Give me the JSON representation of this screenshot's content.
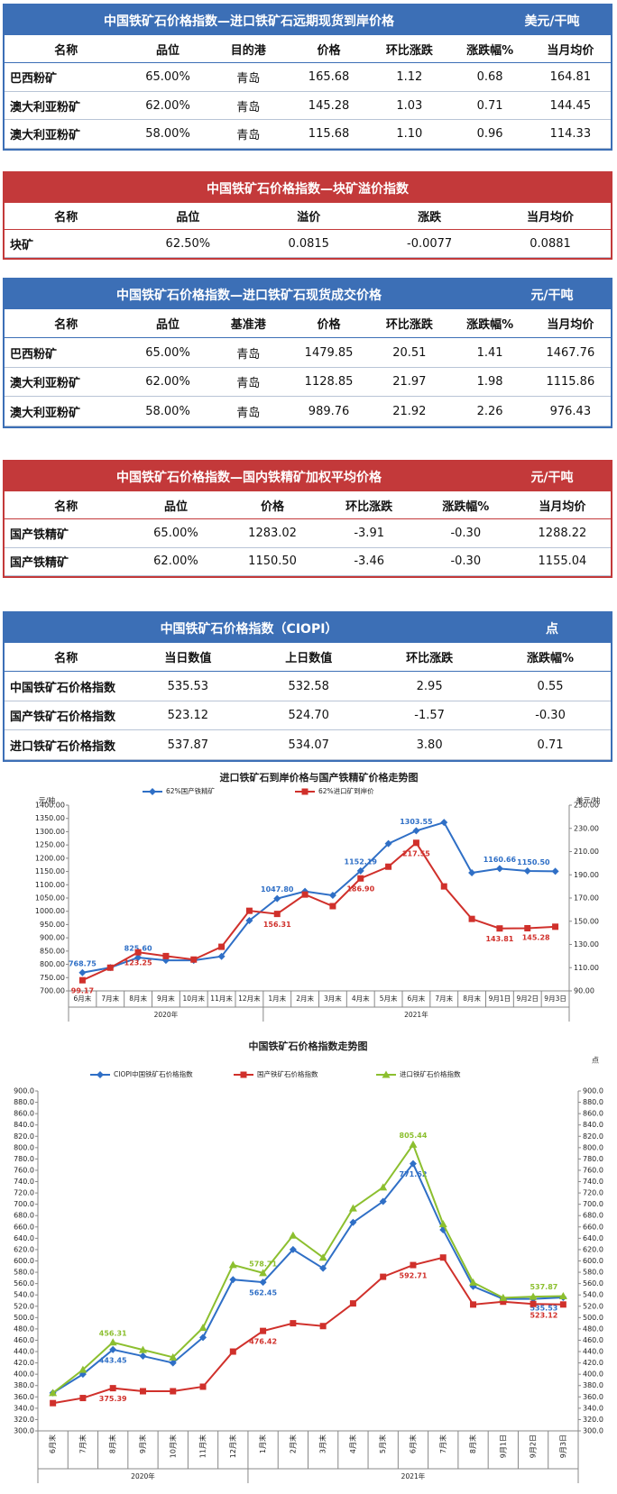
{
  "tables": [
    {
      "title": "中国铁矿石价格指数—进口铁矿石远期现货到岸价格",
      "unit": "美元/干吨",
      "color": "#3c6fb6",
      "header": [
        "名称",
        "品位",
        "目的港",
        "价格",
        "环比涨跌",
        "涨跌幅%",
        "当月均价"
      ],
      "rows": [
        [
          "巴西粉矿",
          "65.00%",
          "青岛",
          "165.68",
          "1.12",
          "0.68",
          "164.81"
        ],
        [
          "澳大利亚粉矿",
          "62.00%",
          "青岛",
          "145.28",
          "1.03",
          "0.71",
          "144.45"
        ],
        [
          "澳大利亚粉矿",
          "58.00%",
          "青岛",
          "115.68",
          "1.10",
          "0.96",
          "114.33"
        ]
      ]
    },
    {
      "title": "中国铁矿石价格指数—块矿溢价指数",
      "color": "#c3393a",
      "header": [
        "名称",
        "品位",
        "溢价",
        "涨跌",
        "当月均价"
      ],
      "rows": [
        [
          "块矿",
          "62.50%",
          "0.0815",
          "-0.0077",
          "0.0881"
        ]
      ]
    },
    {
      "title": "中国铁矿石价格指数—进口铁矿石现货成交价格",
      "unit": "元/干吨",
      "color": "#3c6fb6",
      "header": [
        "名称",
        "品位",
        "基准港",
        "价格",
        "环比涨跌",
        "涨跌幅%",
        "当月均价"
      ],
      "rows": [
        [
          "巴西粉矿",
          "65.00%",
          "青岛",
          "1479.85",
          "20.51",
          "1.41",
          "1467.76"
        ],
        [
          "澳大利亚粉矿",
          "62.00%",
          "青岛",
          "1128.85",
          "21.97",
          "1.98",
          "1115.86"
        ],
        [
          "澳大利亚粉矿",
          "58.00%",
          "青岛",
          "989.76",
          "21.92",
          "2.26",
          "976.43"
        ]
      ]
    },
    {
      "title": "中国铁矿石价格指数—国内铁精矿加权平均价格",
      "unit": "元/干吨",
      "color": "#c3393a",
      "header": [
        "名称",
        "品位",
        "价格",
        "环比涨跌",
        "涨跌幅%",
        "当月均价"
      ],
      "rows": [
        [
          "国产铁精矿",
          "65.00%",
          "1283.02",
          "-3.91",
          "-0.30",
          "1288.22"
        ],
        [
          "国产铁精矿",
          "62.00%",
          "1150.50",
          "-3.46",
          "-0.30",
          "1155.04"
        ]
      ]
    },
    {
      "title": "中国铁矿石价格指数（CIOPI）",
      "unit": "点",
      "color": "#3c6fb6",
      "header": [
        "名称",
        "当日数值",
        "上日数值",
        "环比涨跌",
        "涨跌幅%"
      ],
      "rows": [
        [
          "中国铁矿石价格指数",
          "535.53",
          "532.58",
          "2.95",
          "0.55"
        ],
        [
          "国产铁矿石价格指数",
          "523.12",
          "524.70",
          "-1.57",
          "-0.30"
        ],
        [
          "进口铁矿石价格指数",
          "537.87",
          "534.07",
          "3.80",
          "0.71"
        ]
      ]
    }
  ],
  "chart_data": [
    {
      "type": "line",
      "title": "进口铁矿石到岸价格与国产铁精矿价格走势图",
      "y_label": "元/吨",
      "y2_label": "美元/吨",
      "categories": [
        "6月末",
        "7月末",
        "8月末",
        "9月末",
        "10月末",
        "11月末",
        "12月末",
        "1月末",
        "2月末",
        "3月末",
        "4月末",
        "5月末",
        "6月末",
        "7月末",
        "8月末",
        "9月1日",
        "9月2日",
        "9月3日"
      ],
      "category_groups": [
        {
          "name": "2020年",
          "count": 7
        },
        {
          "name": "2021年",
          "count": 11
        }
      ],
      "series": [
        {
          "name": "62%国产铁精矿",
          "color": "#2f6fc6",
          "marker": "diamond",
          "values": [
            768.75,
            788,
            825.6,
            815,
            815,
            830,
            965,
            1047.8,
            1075,
            1060,
            1152.19,
            1255,
            1303.55,
            1335,
            1145,
            1160.66,
            1152,
            1150.5
          ],
          "value_labels": [
            "768.75",
            null,
            "825.60",
            null,
            null,
            null,
            null,
            "1047.80",
            null,
            null,
            "1152.19",
            null,
            "1303.55",
            null,
            null,
            "1160.66",
            null,
            "1150.50"
          ]
        },
        {
          "name": "62%进口矿到岸价",
          "color": "#d0302b",
          "marker": "square",
          "axis": "y2",
          "values": [
            99.17,
            110,
            123.25,
            120,
            117,
            128,
            159,
            156.31,
            173,
            163,
            186.9,
            197,
            217.55,
            180,
            152,
            143.81,
            144,
            145.28
          ],
          "value_labels": [
            "99.17",
            null,
            "123.25",
            null,
            null,
            null,
            null,
            "156.31",
            null,
            null,
            "186.90",
            null,
            "217.55",
            null,
            null,
            "143.81",
            null,
            "145.28"
          ]
        }
      ],
      "ylim": [
        700,
        1400
      ],
      "yticks": [
        {
          "value": 700,
          "label": "700.00"
        },
        {
          "value": 750,
          "label": "750.00"
        },
        {
          "value": 800,
          "label": "800.00"
        },
        {
          "value": 850,
          "label": "850.00"
        },
        {
          "value": 900,
          "label": "900.00"
        },
        {
          "value": 950,
          "label": "950.00"
        },
        {
          "value": 1000,
          "label": "1000.00"
        },
        {
          "value": 1050,
          "label": "1050.00"
        },
        {
          "value": 1100,
          "label": "1100.00"
        },
        {
          "value": 1150,
          "label": "1150.00"
        },
        {
          "value": 1200,
          "label": "1200.00"
        },
        {
          "value": 1250,
          "label": "1250.00"
        },
        {
          "value": 1300,
          "label": "1300.00"
        },
        {
          "value": 1350,
          "label": "1350.00"
        },
        {
          "value": 1400,
          "label": "1400.00"
        }
      ],
      "y2lim": [
        90,
        250
      ],
      "y2ticks": [
        {
          "value": 90,
          "label": "90.00"
        },
        {
          "value": 110,
          "label": "110.00"
        },
        {
          "value": 130,
          "label": "130.00"
        },
        {
          "value": 150,
          "label": "150.00"
        },
        {
          "value": 170,
          "label": "170.00"
        },
        {
          "value": 190,
          "label": "190.00"
        },
        {
          "value": 210,
          "label": "210.00"
        },
        {
          "value": 230,
          "label": "230.00"
        },
        {
          "value": 250,
          "label": "250.00"
        }
      ],
      "grid": false
    },
    {
      "type": "line",
      "title": "中国铁矿石价格指数走势图",
      "y2_label": "点",
      "categories": [
        "6月末",
        "7月末",
        "8月末",
        "9月末",
        "10月末",
        "11月末",
        "12月末",
        "1月末",
        "2月末",
        "3月末",
        "4月末",
        "5月末",
        "6月末",
        "7月末",
        "8月末",
        "9月1日",
        "9月2日",
        "9月3日"
      ],
      "category_groups": [
        {
          "name": "2020年",
          "count": 7
        },
        {
          "name": "2021年",
          "count": 11
        }
      ],
      "series": [
        {
          "name": "CIOPI中国铁矿石价格指数",
          "color": "#2f6fc6",
          "marker": "diamond",
          "values": [
            367,
            400,
            443.45,
            432,
            420,
            465,
            567,
            562.45,
            620,
            587,
            668,
            705,
            771.62,
            655,
            555,
            533,
            533,
            535.53
          ],
          "value_labels": [
            null,
            null,
            "443.45",
            null,
            null,
            null,
            null,
            "562.45",
            null,
            null,
            null,
            null,
            "771.62",
            null,
            null,
            null,
            null,
            "535.53"
          ]
        },
        {
          "name": "国产铁矿石价格指数",
          "color": "#d0302b",
          "marker": "square",
          "values": [
            349,
            358,
            375.39,
            370,
            370,
            378,
            440,
            476.42,
            490,
            485,
            525,
            572,
            592.71,
            606,
            523,
            528,
            524,
            523.12
          ],
          "value_labels": [
            null,
            null,
            "375.39",
            null,
            null,
            null,
            null,
            "476.42",
            null,
            null,
            null,
            null,
            "592.71",
            null,
            null,
            null,
            null,
            "523.12"
          ]
        },
        {
          "name": "进口铁矿石价格指数",
          "color": "#8cbf2f",
          "marker": "triangle",
          "values": [
            367,
            408,
            456.31,
            443,
            430,
            482,
            593,
            578.71,
            645,
            606,
            693,
            730,
            805.44,
            665,
            562,
            535,
            537,
            537.87
          ],
          "value_labels": [
            null,
            null,
            "456.31",
            null,
            null,
            null,
            null,
            "578.71",
            null,
            null,
            null,
            null,
            "805.44",
            null,
            null,
            null,
            null,
            "537.87"
          ]
        }
      ],
      "ylim": [
        300,
        900
      ],
      "yticks": [
        {
          "value": 300,
          "label": "300.0"
        },
        {
          "value": 320,
          "label": "320.0"
        },
        {
          "value": 340,
          "label": "340.0"
        },
        {
          "value": 360,
          "label": "360.0"
        },
        {
          "value": 380,
          "label": "380.0"
        },
        {
          "value": 400,
          "label": "400.0"
        },
        {
          "value": 420,
          "label": "420.0"
        },
        {
          "value": 440,
          "label": "440.0"
        },
        {
          "value": 460,
          "label": "460.0"
        },
        {
          "value": 480,
          "label": "480.0"
        },
        {
          "value": 500,
          "label": "500.0"
        },
        {
          "value": 520,
          "label": "520.0"
        },
        {
          "value": 540,
          "label": "540.0"
        },
        {
          "value": 560,
          "label": "560.0"
        },
        {
          "value": 580,
          "label": "580.0"
        },
        {
          "value": 600,
          "label": "600.0"
        },
        {
          "value": 620,
          "label": "620.0"
        },
        {
          "value": 640,
          "label": "640.0"
        },
        {
          "value": 660,
          "label": "660.0"
        },
        {
          "value": 680,
          "label": "680.0"
        },
        {
          "value": 700,
          "label": "700.0"
        },
        {
          "value": 720,
          "label": "720.0"
        },
        {
          "value": 740,
          "label": "740.0"
        },
        {
          "value": 760,
          "label": "760.0"
        },
        {
          "value": 780,
          "label": "780.0"
        },
        {
          "value": 800,
          "label": "800.0"
        },
        {
          "value": 820,
          "label": "820.0"
        },
        {
          "value": 840,
          "label": "840.0"
        },
        {
          "value": 860,
          "label": "860.0"
        },
        {
          "value": 880,
          "label": "880.0"
        },
        {
          "value": 900,
          "label": "900.0"
        }
      ],
      "y2lim": [
        300,
        900
      ],
      "y2ticks": [
        {
          "value": 300,
          "label": "300.0"
        },
        {
          "value": 320,
          "label": "320.0"
        },
        {
          "value": 340,
          "label": "340.0"
        },
        {
          "value": 360,
          "label": "360.0"
        },
        {
          "value": 380,
          "label": "380.0"
        },
        {
          "value": 400,
          "label": "400.0"
        },
        {
          "value": 420,
          "label": "420.0"
        },
        {
          "value": 440,
          "label": "440.0"
        },
        {
          "value": 460,
          "label": "460.0"
        },
        {
          "value": 480,
          "label": "480.0"
        },
        {
          "value": 500,
          "label": "500.0"
        },
        {
          "value": 520,
          "label": "520.0"
        },
        {
          "value": 540,
          "label": "540.0"
        },
        {
          "value": 560,
          "label": "560.0"
        },
        {
          "value": 580,
          "label": "580.0"
        },
        {
          "value": 600,
          "label": "600.0"
        },
        {
          "value": 620,
          "label": "620.0"
        },
        {
          "value": 640,
          "label": "640.0"
        },
        {
          "value": 660,
          "label": "660.0"
        },
        {
          "value": 680,
          "label": "680.0"
        },
        {
          "value": 700,
          "label": "700.0"
        },
        {
          "value": 720,
          "label": "720.0"
        },
        {
          "value": 740,
          "label": "740.0"
        },
        {
          "value": 760,
          "label": "760.0"
        },
        {
          "value": 780,
          "label": "780.0"
        },
        {
          "value": 800,
          "label": "800.0"
        },
        {
          "value": 820,
          "label": "820.0"
        },
        {
          "value": 840,
          "label": "840.0"
        },
        {
          "value": 860,
          "label": "860.0"
        },
        {
          "value": 880,
          "label": "880.0"
        },
        {
          "value": 900,
          "label": "900.0"
        }
      ],
      "grid": false
    }
  ]
}
